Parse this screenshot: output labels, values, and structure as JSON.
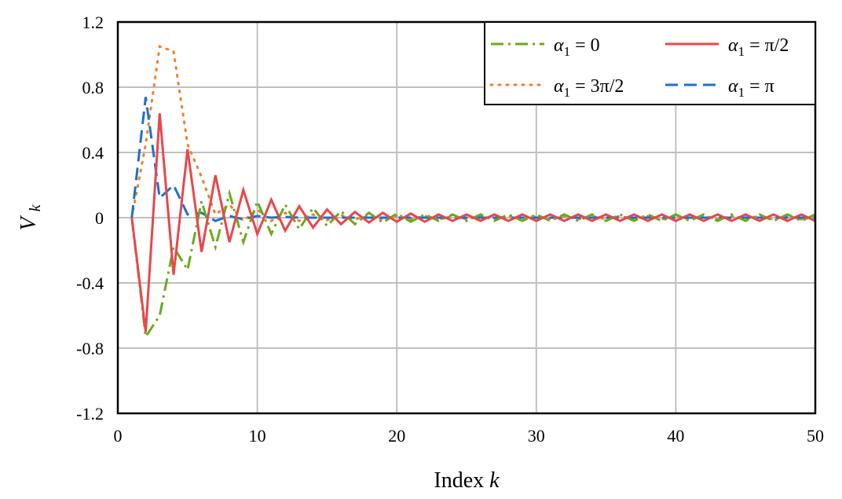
{
  "chart_data": {
    "type": "line",
    "xlabel": "Index",
    "xlabel_var": "k",
    "ylabel_var": "V",
    "ylabel_sub": "k",
    "xlim": [
      0,
      50
    ],
    "ylim": [
      -1.2,
      1.2
    ],
    "x_ticks": [
      "0",
      "10",
      "20",
      "30",
      "40",
      "50"
    ],
    "y_ticks": [
      "-1.2",
      "-0.8",
      "-0.4",
      "0",
      "0.4",
      "0.8",
      "1.2"
    ],
    "x_tick_values": [
      0,
      10,
      20,
      30,
      40,
      50
    ],
    "y_tick_values": [
      -1.2,
      -0.8,
      -0.4,
      0,
      0.4,
      0.8,
      1.2
    ],
    "grid": true,
    "legend_position": "top-right",
    "series": [
      {
        "name": "α1 = 0",
        "legend": {
          "var": "α",
          "sub": "1",
          "rhs": " = 0"
        },
        "color": "#6aaa1c",
        "dash": "dashdot",
        "x": [
          1,
          2,
          3,
          4,
          5,
          6,
          7,
          8,
          9,
          10,
          11,
          12,
          13,
          14,
          15,
          16,
          17,
          18,
          19,
          20,
          21,
          22,
          23,
          24,
          25,
          26,
          27,
          28,
          29,
          30,
          31,
          32,
          33,
          34,
          35,
          36,
          37,
          38,
          39,
          40,
          41,
          42,
          43,
          44,
          45,
          46,
          47,
          48,
          49,
          50
        ],
        "y": [
          0,
          -0.73,
          -0.6,
          -0.18,
          -0.32,
          0.1,
          -0.18,
          0.15,
          -0.15,
          0.1,
          -0.1,
          0.08,
          -0.07,
          0.06,
          -0.05,
          0.04,
          -0.04,
          0.03,
          -0.03,
          0.025,
          -0.025,
          0.02,
          -0.02,
          0.02,
          -0.02,
          0.02,
          -0.02,
          0.02,
          -0.02,
          0.02,
          -0.02,
          0.02,
          -0.02,
          0.02,
          -0.02,
          0.02,
          -0.02,
          0.02,
          -0.02,
          0.02,
          -0.02,
          0.02,
          -0.02,
          0.02,
          -0.02,
          0.02,
          -0.02,
          0.02,
          -0.02,
          0.02
        ]
      },
      {
        "name": "α1 = π/2",
        "legend": {
          "var": "α",
          "sub": "1",
          "rhs": " = π/2"
        },
        "color": "#e8474c",
        "dash": "solid",
        "x": [
          1,
          2,
          3,
          4,
          5,
          6,
          7,
          8,
          9,
          10,
          11,
          12,
          13,
          14,
          15,
          16,
          17,
          18,
          19,
          20,
          21,
          22,
          23,
          24,
          25,
          26,
          27,
          28,
          29,
          30,
          31,
          32,
          33,
          34,
          35,
          36,
          37,
          38,
          39,
          40,
          41,
          42,
          43,
          44,
          45,
          46,
          47,
          48,
          49,
          50
        ],
        "y": [
          0,
          -0.7,
          0.64,
          -0.35,
          0.42,
          -0.21,
          0.26,
          -0.15,
          0.17,
          -0.1,
          0.11,
          -0.08,
          0.07,
          -0.06,
          0.05,
          -0.04,
          0.035,
          -0.03,
          0.03,
          -0.025,
          0.025,
          -0.025,
          0.02,
          -0.02,
          0.02,
          -0.02,
          0.02,
          -0.02,
          0.02,
          -0.02,
          0.02,
          -0.02,
          0.02,
          -0.02,
          0.02,
          -0.02,
          0.02,
          -0.02,
          0.02,
          -0.02,
          0.02,
          -0.02,
          0.02,
          -0.02,
          0.02,
          -0.02,
          0.02,
          -0.02,
          0.02,
          -0.02
        ]
      },
      {
        "name": "α1 = 3π/2",
        "legend": {
          "var": "α",
          "sub": "1",
          "rhs": " = 3π/2"
        },
        "color": "#ef7f2f",
        "dash": "dotted",
        "x": [
          1,
          2,
          3,
          4,
          5,
          6,
          7,
          8,
          9,
          10,
          11,
          12,
          13,
          14,
          15,
          16,
          17,
          18,
          19,
          20,
          21,
          22,
          23,
          24,
          25,
          26,
          27,
          28,
          29,
          30,
          31,
          32,
          33,
          34,
          35,
          36,
          37,
          38,
          39,
          40,
          41,
          42,
          43,
          44,
          45,
          46,
          47,
          48,
          49,
          50
        ],
        "y": [
          0,
          0.45,
          1.05,
          1.02,
          0.45,
          0.25,
          0.02,
          0.08,
          -0.02,
          0.05,
          -0.02,
          0.03,
          -0.02,
          0.02,
          -0.015,
          0.015,
          -0.01,
          0.01,
          -0.01,
          0.01,
          -0.01,
          0.01,
          -0.01,
          0.01,
          -0.01,
          0.01,
          -0.01,
          0.01,
          -0.01,
          0.01,
          -0.01,
          0.01,
          -0.01,
          0.01,
          -0.01,
          0.01,
          -0.01,
          0.01,
          -0.01,
          0.01,
          -0.01,
          0.01,
          -0.01,
          0.01,
          -0.01,
          0.01,
          -0.01,
          0.01,
          -0.01,
          0.01
        ]
      },
      {
        "name": "α1 = π",
        "legend": {
          "var": "α",
          "sub": "1",
          "rhs": " = π"
        },
        "color": "#1f6fd0",
        "dash": "dashed",
        "x": [
          1,
          2,
          3,
          4,
          5,
          6,
          7,
          8,
          9,
          10,
          11,
          12,
          13,
          14,
          15,
          16,
          17,
          18,
          19,
          20,
          21,
          22,
          23,
          24,
          25,
          26,
          27,
          28,
          29,
          30,
          31,
          32,
          33,
          34,
          35,
          36,
          37,
          38,
          39,
          40,
          41,
          42,
          43,
          44,
          45,
          46,
          47,
          48,
          49,
          50
        ],
        "y": [
          0,
          0.74,
          0.12,
          0.2,
          0.02,
          0.03,
          -0.02,
          0.01,
          -0.01,
          0.01,
          0,
          0.005,
          0,
          0,
          0,
          0,
          0,
          0,
          0,
          0,
          0,
          0,
          0,
          0,
          0,
          0,
          0,
          0,
          0,
          0,
          0,
          0,
          0,
          0,
          0,
          0,
          0,
          0,
          0,
          0,
          0,
          0,
          0,
          0,
          0,
          0,
          0,
          0,
          0,
          0
        ]
      }
    ]
  }
}
